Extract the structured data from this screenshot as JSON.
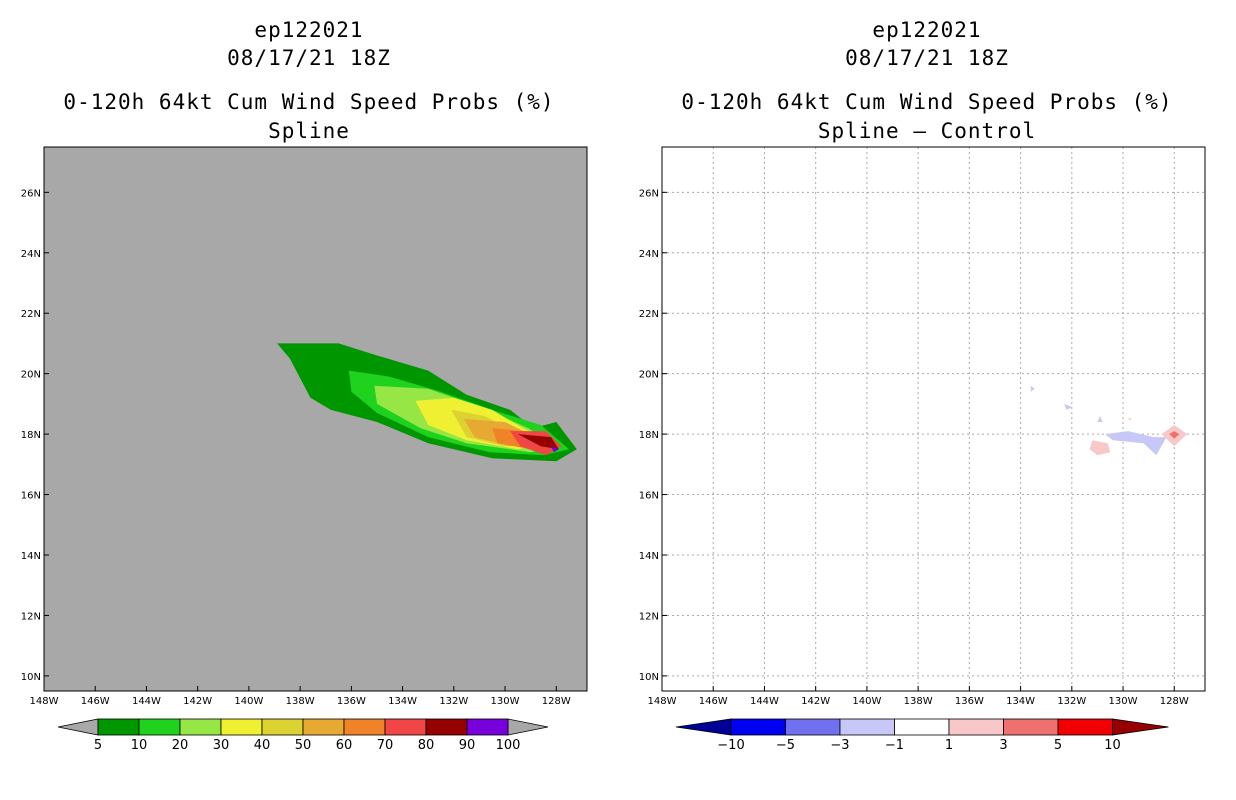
{
  "panels": [
    {
      "storm_id": "ep122021",
      "datetime": "08/17/21 18Z",
      "product": "0-120h 64kt Cum Wind Speed Probs (%)",
      "subtitle": "Spline",
      "background": "#a8a8a8",
      "colorbar": {
        "labels": [
          "5",
          "10",
          "20",
          "30",
          "40",
          "50",
          "60",
          "70",
          "80",
          "90",
          "100"
        ],
        "colors": [
          "#009600",
          "#1ed21e",
          "#96e646",
          "#f0f032",
          "#dcd232",
          "#e6aa32",
          "#f08228",
          "#f04646",
          "#960000",
          "#7800dc"
        ],
        "end_color": "#a8a8a8"
      }
    },
    {
      "storm_id": "ep122021",
      "datetime": "08/17/21 18Z",
      "product": "0-120h 64kt Cum Wind Speed Probs (%)",
      "subtitle": "Spline – Control",
      "background": "#ffffff",
      "colorbar": {
        "labels": [
          "−10",
          "−5",
          "−3",
          "−1",
          "1",
          "3",
          "5",
          "10"
        ],
        "colors": [
          "#0000f0",
          "#7070f0",
          "#c8c8f8",
          "#ffffff",
          "#f8c8c8",
          "#f07070",
          "#f00000"
        ],
        "left_end_color": "#000096",
        "right_end_color": "#960000"
      }
    }
  ],
  "map": {
    "lon_labels": [
      "148W",
      "146W",
      "144W",
      "142W",
      "140W",
      "138W",
      "136W",
      "134W",
      "132W",
      "130W",
      "128W"
    ],
    "lon_values": [
      -148,
      -146,
      -144,
      -142,
      -140,
      -138,
      -136,
      -134,
      -132,
      -130,
      -128
    ],
    "lat_labels": [
      "10N",
      "12N",
      "14N",
      "16N",
      "18N",
      "20N",
      "22N",
      "24N",
      "26N"
    ],
    "lat_values": [
      10,
      12,
      14,
      16,
      18,
      20,
      22,
      24,
      26
    ],
    "lon_range": [
      -148,
      -126.8
    ],
    "lat_range": [
      9.5,
      27.5
    ]
  },
  "prob_field": {
    "units": "%",
    "contours": [
      {
        "level": 5,
        "color": "#009600",
        "points": [
          [
            -138.9,
            21.0
          ],
          [
            -136.5,
            21.0
          ],
          [
            -135.0,
            20.6
          ],
          [
            -133.0,
            20.1
          ],
          [
            -131.5,
            19.3
          ],
          [
            -129.8,
            18.8
          ],
          [
            -128.9,
            18.2
          ],
          [
            -128.0,
            18.4
          ],
          [
            -127.2,
            17.5
          ],
          [
            -128.0,
            17.1
          ],
          [
            -130.5,
            17.2
          ],
          [
            -133.0,
            17.7
          ],
          [
            -135.0,
            18.4
          ],
          [
            -136.8,
            18.8
          ],
          [
            -137.6,
            19.2
          ],
          [
            -138.4,
            20.5
          ],
          [
            -138.9,
            21.0
          ]
        ]
      },
      {
        "level": 10,
        "color": "#1ed21e",
        "points": [
          [
            -136.1,
            20.1
          ],
          [
            -134.5,
            19.9
          ],
          [
            -132.5,
            19.4
          ],
          [
            -130.5,
            18.8
          ],
          [
            -128.6,
            18.3
          ],
          [
            -127.5,
            17.5
          ],
          [
            -128.5,
            17.3
          ],
          [
            -130.6,
            17.4
          ],
          [
            -133.0,
            17.9
          ],
          [
            -135.0,
            18.7
          ],
          [
            -136.0,
            19.4
          ],
          [
            -136.1,
            20.1
          ]
        ]
      },
      {
        "level": 20,
        "color": "#96e646",
        "points": [
          [
            -135.1,
            19.6
          ],
          [
            -133.0,
            19.5
          ],
          [
            -131.0,
            18.9
          ],
          [
            -129.1,
            18.2
          ],
          [
            -128.0,
            17.6
          ],
          [
            -129.0,
            17.4
          ],
          [
            -131.5,
            17.7
          ],
          [
            -133.3,
            18.2
          ],
          [
            -135.0,
            19.0
          ],
          [
            -135.1,
            19.6
          ]
        ]
      },
      {
        "level": 30,
        "color": "#f0f032",
        "points": [
          [
            -133.5,
            19.1
          ],
          [
            -132.0,
            19.2
          ],
          [
            -130.5,
            18.8
          ],
          [
            -129.1,
            18.1
          ],
          [
            -128.3,
            17.7
          ],
          [
            -129.5,
            17.5
          ],
          [
            -131.5,
            17.8
          ],
          [
            -133.0,
            18.3
          ],
          [
            -133.5,
            19.1
          ]
        ]
      },
      {
        "level": 40,
        "color": "#dcd232",
        "points": [
          [
            -132.1,
            18.8
          ],
          [
            -130.8,
            18.6
          ],
          [
            -129.4,
            18.0
          ],
          [
            -128.6,
            17.7
          ],
          [
            -130.0,
            17.6
          ],
          [
            -131.5,
            17.9
          ],
          [
            -132.1,
            18.8
          ]
        ]
      },
      {
        "level": 50,
        "color": "#e6aa32",
        "points": [
          [
            -131.6,
            18.5
          ],
          [
            -130.0,
            18.4
          ],
          [
            -128.8,
            17.9
          ],
          [
            -129.8,
            17.6
          ],
          [
            -131.2,
            17.9
          ],
          [
            -131.6,
            18.5
          ]
        ]
      },
      {
        "level": 60,
        "color": "#f08228",
        "points": [
          [
            -130.5,
            18.2
          ],
          [
            -129.2,
            18.1
          ],
          [
            -128.4,
            17.8
          ],
          [
            -129.0,
            17.5
          ],
          [
            -130.3,
            17.7
          ],
          [
            -130.5,
            18.2
          ]
        ]
      },
      {
        "level": 70,
        "color": "#f04646",
        "points": [
          [
            -129.8,
            18.1
          ],
          [
            -128.4,
            18.1
          ],
          [
            -127.8,
            17.6
          ],
          [
            -128.4,
            17.3
          ],
          [
            -129.4,
            17.6
          ],
          [
            -129.8,
            18.1
          ]
        ]
      },
      {
        "level": 80,
        "color": "#960000",
        "points": [
          [
            -129.5,
            18.0
          ],
          [
            -128.2,
            17.9
          ],
          [
            -127.9,
            17.5
          ],
          [
            -128.6,
            17.6
          ],
          [
            -129.5,
            18.0
          ]
        ]
      },
      {
        "level": 90,
        "color": "#7800dc",
        "points": [
          [
            -128.2,
            17.6
          ],
          [
            -127.9,
            17.5
          ],
          [
            -128.1,
            17.4
          ],
          [
            -128.2,
            17.6
          ]
        ]
      }
    ]
  },
  "diff_field": {
    "units": "%",
    "contours": [
      {
        "level": -1,
        "color": "#c8c8f8",
        "points": [
          [
            -130.7,
            18.0
          ],
          [
            -129.8,
            18.1
          ],
          [
            -128.8,
            17.9
          ],
          [
            -128.3,
            17.9
          ],
          [
            -128.7,
            17.3
          ],
          [
            -129.2,
            17.7
          ],
          [
            -130.4,
            17.8
          ],
          [
            -130.7,
            18.0
          ]
        ]
      },
      {
        "level": -1,
        "color": "#c8c8f8",
        "points": [
          [
            -133.6,
            19.6
          ],
          [
            -133.45,
            19.5
          ],
          [
            -133.6,
            19.4
          ],
          [
            -133.6,
            19.6
          ]
        ]
      },
      {
        "level": -1,
        "color": "#c8c8f8",
        "points": [
          [
            -132.3,
            19.0
          ],
          [
            -132.0,
            18.9
          ],
          [
            -132.2,
            18.8
          ],
          [
            -132.3,
            19.0
          ]
        ]
      },
      {
        "level": -1,
        "color": "#c8c8f8",
        "points": [
          [
            -130.9,
            18.6
          ],
          [
            -130.8,
            18.4
          ],
          [
            -131.0,
            18.4
          ],
          [
            -130.9,
            18.6
          ]
        ]
      },
      {
        "level": 1,
        "color": "#f8c8c8",
        "points": [
          [
            -131.2,
            17.8
          ],
          [
            -130.6,
            17.7
          ],
          [
            -130.5,
            17.4
          ],
          [
            -131.0,
            17.3
          ],
          [
            -131.3,
            17.5
          ],
          [
            -131.2,
            17.8
          ]
        ]
      },
      {
        "level": 1,
        "color": "#f8c8c8",
        "points": [
          [
            -128.0,
            18.3
          ],
          [
            -127.5,
            18.0
          ],
          [
            -128.0,
            17.6
          ],
          [
            -128.5,
            18.0
          ],
          [
            -128.0,
            18.3
          ]
        ]
      },
      {
        "level": 1,
        "color": "#f8c8c8",
        "points": [
          [
            -129.8,
            18.55
          ],
          [
            -129.65,
            18.5
          ],
          [
            -129.75,
            18.45
          ],
          [
            -129.8,
            18.55
          ]
        ]
      },
      {
        "level": 3,
        "color": "#f07070",
        "points": [
          [
            -128.0,
            18.1
          ],
          [
            -127.8,
            18.0
          ],
          [
            -128.0,
            17.85
          ],
          [
            -128.2,
            18.0
          ],
          [
            -128.0,
            18.1
          ]
        ]
      }
    ]
  }
}
